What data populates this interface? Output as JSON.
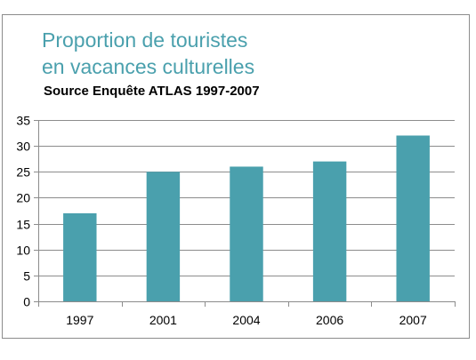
{
  "chart_data": {
    "type": "bar",
    "title": "Proportion de touristes\nen vacances culturelles",
    "subtitle": "Source Enquête ATLAS 1997-2007",
    "categories": [
      "1997",
      "2001",
      "2004",
      "2006",
      "2007"
    ],
    "values": [
      17,
      25,
      26,
      27,
      32
    ],
    "xlabel": "",
    "ylabel": "",
    "ylim": [
      0,
      35
    ],
    "yticks": [
      "0",
      "5",
      "10",
      "15",
      "20",
      "25",
      "30",
      "35"
    ],
    "grid": true,
    "legend": "none",
    "colors": {
      "bar": "#4aa0ad",
      "title": "#4aa0ad",
      "grid": "#8c8c8c",
      "axis": "#8c8c8c"
    }
  }
}
